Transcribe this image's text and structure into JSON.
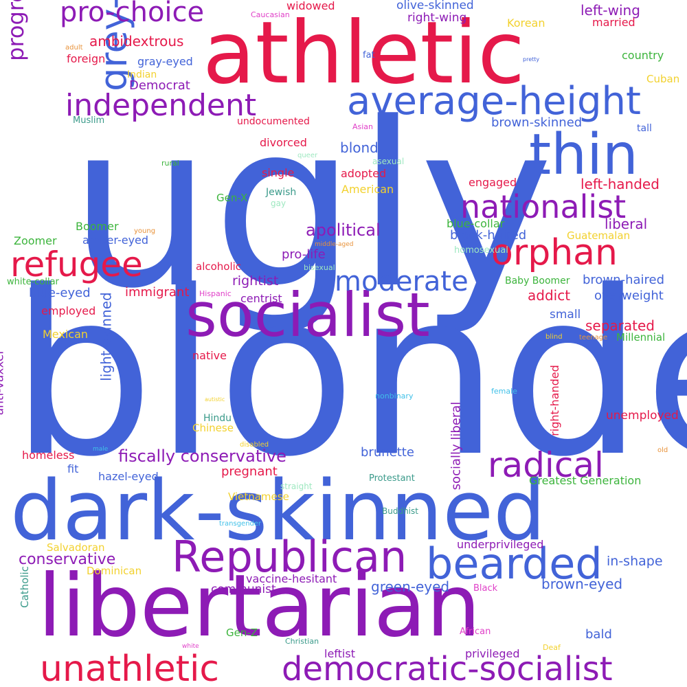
{
  "colors": {
    "blue": "#4263d8",
    "purple": "#8d1bb5",
    "red": "#e5194a",
    "green": "#3cb43c",
    "teal": "#3a9a8a",
    "yellow": "#f2d12e",
    "orange": "#e8923a",
    "pink": "#e040c8",
    "lightblue": "#40c0e8",
    "mint": "#9ee8c0"
  },
  "words": [
    {
      "text": "ugly",
      "color": "blue"
    },
    {
      "text": "blonde",
      "color": "blue"
    },
    {
      "text": "athletic",
      "color": "red"
    },
    {
      "text": "libertarian",
      "color": "purple"
    },
    {
      "text": "dark-skinned",
      "color": "blue"
    },
    {
      "text": "socialist",
      "color": "purple"
    },
    {
      "text": "thin",
      "color": "blue"
    },
    {
      "text": "average-height",
      "color": "blue"
    },
    {
      "text": "Republican",
      "color": "purple"
    },
    {
      "text": "bearded",
      "color": "blue"
    },
    {
      "text": "unathletic",
      "color": "red"
    },
    {
      "text": "democratic-socialist",
      "color": "purple"
    },
    {
      "text": "nationalist",
      "color": "purple"
    },
    {
      "text": "orphan",
      "color": "red"
    },
    {
      "text": "refugee",
      "color": "red"
    },
    {
      "text": "radical",
      "color": "purple"
    },
    {
      "text": "grey-eyed",
      "color": "blue"
    },
    {
      "text": "independent",
      "color": "purple"
    },
    {
      "text": "moderate",
      "color": "blue"
    },
    {
      "text": "pro-choice",
      "color": "purple"
    },
    {
      "text": "progressive",
      "color": "purple"
    },
    {
      "text": "fiscally conservative",
      "color": "purple"
    },
    {
      "text": "apolitical",
      "color": "purple"
    },
    {
      "text": "conservative",
      "color": "purple"
    },
    {
      "text": "socially liberal",
      "color": "purple"
    },
    {
      "text": "light-skinned",
      "color": "blue"
    },
    {
      "text": "green-eyed",
      "color": "blue"
    },
    {
      "text": "brown-eyed",
      "color": "blue"
    },
    {
      "text": "brunette",
      "color": "blue"
    },
    {
      "text": "pregnant",
      "color": "red"
    },
    {
      "text": "left-handed",
      "color": "red"
    },
    {
      "text": "left-wing",
      "color": "purple"
    },
    {
      "text": "ambidextrous",
      "color": "red"
    },
    {
      "text": "brown-skinned",
      "color": "blue"
    },
    {
      "text": "olive-skinned",
      "color": "blue"
    },
    {
      "text": "right-wing",
      "color": "purple"
    },
    {
      "text": "Democrat",
      "color": "purple"
    },
    {
      "text": "blond",
      "color": "blue"
    },
    {
      "text": "liberal",
      "color": "purple"
    },
    {
      "text": "black-haired",
      "color": "blue"
    },
    {
      "text": "brown-haired",
      "color": "blue"
    },
    {
      "text": "rightist",
      "color": "purple"
    },
    {
      "text": "pro-life",
      "color": "purple"
    },
    {
      "text": "separated",
      "color": "red"
    },
    {
      "text": "addict",
      "color": "red"
    },
    {
      "text": "overweight",
      "color": "blue"
    },
    {
      "text": "immigrant",
      "color": "red"
    },
    {
      "text": "blue-eyed",
      "color": "blue"
    },
    {
      "text": "centrist",
      "color": "purple"
    },
    {
      "text": "small",
      "color": "blue"
    },
    {
      "text": "in-shape",
      "color": "blue"
    },
    {
      "text": "communist",
      "color": "purple"
    },
    {
      "text": "leftist",
      "color": "purple"
    },
    {
      "text": "fit",
      "color": "blue"
    },
    {
      "text": "hazel-eyed",
      "color": "blue"
    },
    {
      "text": "homeless",
      "color": "red"
    },
    {
      "text": "bald",
      "color": "blue"
    },
    {
      "text": "right-handed",
      "color": "red"
    },
    {
      "text": "anti-vaxxer",
      "color": "purple"
    },
    {
      "text": "unemployed",
      "color": "red"
    },
    {
      "text": "vaccine-hesitant",
      "color": "purple"
    },
    {
      "text": "underprivileged",
      "color": "purple"
    },
    {
      "text": "privileged",
      "color": "purple"
    },
    {
      "text": "widowed",
      "color": "red"
    },
    {
      "text": "married",
      "color": "red"
    },
    {
      "text": "divorced",
      "color": "red"
    },
    {
      "text": "single",
      "color": "red"
    },
    {
      "text": "adopted",
      "color": "red"
    },
    {
      "text": "engaged",
      "color": "red"
    },
    {
      "text": "foreign",
      "color": "red"
    },
    {
      "text": "gray-eyed",
      "color": "blue"
    },
    {
      "text": "amber-eyed",
      "color": "blue"
    },
    {
      "text": "employed",
      "color": "red"
    },
    {
      "text": "native",
      "color": "red"
    },
    {
      "text": "alcoholic",
      "color": "red"
    },
    {
      "text": "undocumented",
      "color": "red"
    },
    {
      "text": "blue-collar",
      "color": "green"
    },
    {
      "text": "white-collar",
      "color": "green"
    },
    {
      "text": "country",
      "color": "green"
    },
    {
      "text": "Greatest Generation",
      "color": "green"
    },
    {
      "text": "Baby Boomer",
      "color": "green"
    },
    {
      "text": "Millennial",
      "color": "green"
    },
    {
      "text": "Boomer",
      "color": "green"
    },
    {
      "text": "Zoomer",
      "color": "green"
    },
    {
      "text": "Gen-X",
      "color": "green"
    },
    {
      "text": "Gen-Z",
      "color": "green"
    },
    {
      "text": "rural",
      "color": "green"
    },
    {
      "text": "tall",
      "color": "blue"
    },
    {
      "text": "fat",
      "color": "blue"
    },
    {
      "text": "Korean",
      "color": "yellow"
    },
    {
      "text": "Cuban",
      "color": "yellow"
    },
    {
      "text": "American",
      "color": "yellow"
    },
    {
      "text": "Indian",
      "color": "yellow"
    },
    {
      "text": "Mexican",
      "color": "yellow"
    },
    {
      "text": "Guatemalan",
      "color": "yellow"
    },
    {
      "text": "Chinese",
      "color": "yellow"
    },
    {
      "text": "Vietnamese",
      "color": "yellow"
    },
    {
      "text": "Salvadoran",
      "color": "yellow"
    },
    {
      "text": "Dominican",
      "color": "yellow"
    },
    {
      "text": "Deaf",
      "color": "yellow"
    },
    {
      "text": "blind",
      "color": "yellow"
    },
    {
      "text": "autistic",
      "color": "yellow"
    },
    {
      "text": "disabled",
      "color": "yellow"
    },
    {
      "text": "Muslim",
      "color": "teal"
    },
    {
      "text": "Jewish",
      "color": "teal"
    },
    {
      "text": "Hindu",
      "color": "teal"
    },
    {
      "text": "Protestant",
      "color": "teal"
    },
    {
      "text": "Buddhist",
      "color": "teal"
    },
    {
      "text": "Catholic",
      "color": "teal"
    },
    {
      "text": "Christian",
      "color": "teal"
    },
    {
      "text": "Caucasian",
      "color": "pink"
    },
    {
      "text": "Asian",
      "color": "pink"
    },
    {
      "text": "Hispanic",
      "color": "pink"
    },
    {
      "text": "Black",
      "color": "pink"
    },
    {
      "text": "African",
      "color": "pink"
    },
    {
      "text": "white",
      "color": "pink"
    },
    {
      "text": "adult",
      "color": "orange"
    },
    {
      "text": "young",
      "color": "orange"
    },
    {
      "text": "middle-aged",
      "color": "orange"
    },
    {
      "text": "teenage",
      "color": "orange"
    },
    {
      "text": "old",
      "color": "orange"
    },
    {
      "text": "pretty",
      "color": "blue"
    },
    {
      "text": "nonbinary",
      "color": "lightblue"
    },
    {
      "text": "female",
      "color": "lightblue"
    },
    {
      "text": "male",
      "color": "lightblue"
    },
    {
      "text": "transgender",
      "color": "lightblue"
    },
    {
      "text": "asexual",
      "color": "mint"
    },
    {
      "text": "queer",
      "color": "mint"
    },
    {
      "text": "gay",
      "color": "mint"
    },
    {
      "text": "homosexual",
      "color": "mint"
    },
    {
      "text": "bisexual",
      "color": "mint"
    },
    {
      "text": "straight",
      "color": "mint"
    }
  ]
}
